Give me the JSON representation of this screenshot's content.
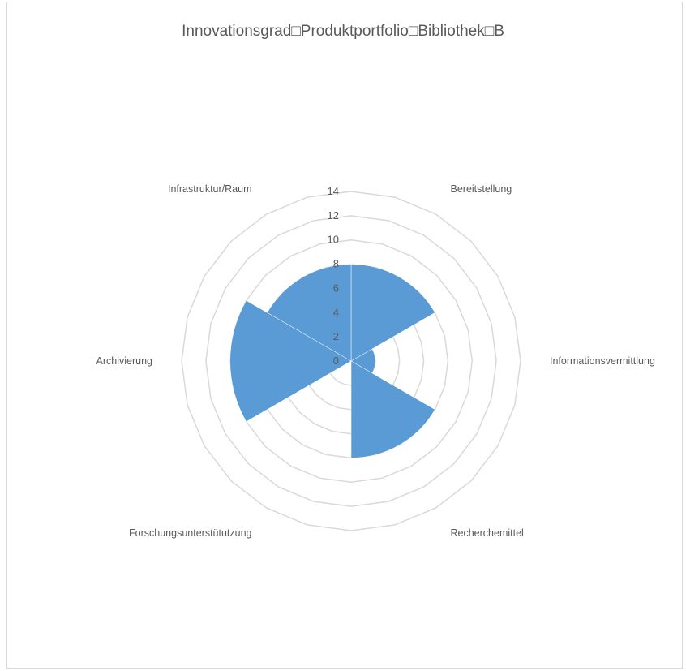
{
  "chart_data": {
    "type": "polar-area",
    "title": "Innovationsgrad□Produktportfolio□Bibliothek□B",
    "categories": [
      "Bereitstellung",
      "Informationsvermittlung",
      "Recherchemittel",
      "Forschungsunterstütutzung",
      "Archivierung",
      "Infrastruktur/Raum"
    ],
    "values": [
      8,
      2,
      8,
      0,
      10,
      8
    ],
    "rlim": [
      0,
      14
    ],
    "ticks": [
      0,
      2,
      4,
      6,
      8,
      10,
      12,
      14
    ],
    "series_color": "#5b9bd5",
    "grid": true
  }
}
